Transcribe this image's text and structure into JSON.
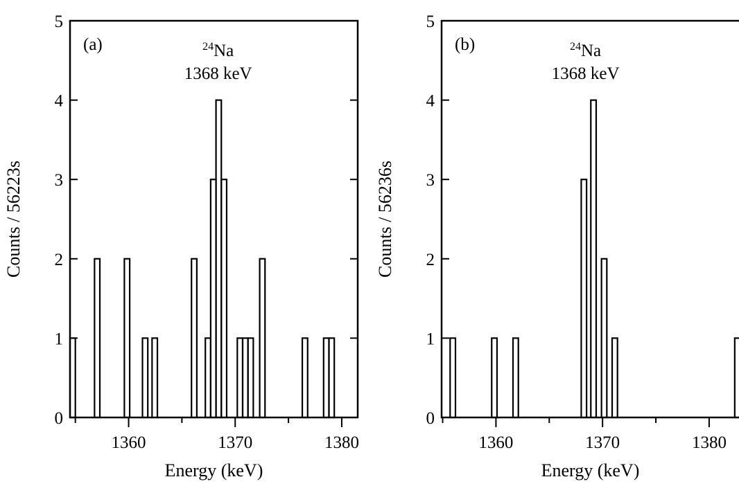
{
  "chart_data": [
    {
      "type": "bar",
      "panel_label": "(a)",
      "annotation": {
        "isotope_mass": "24",
        "isotope_symbol": "Na",
        "energy": "1368 keV"
      },
      "xlabel": "Energy (keV)",
      "ylabel": "Counts / 56223s",
      "xlim": [
        1354.5,
        1381.5
      ],
      "ylim": [
        0,
        5
      ],
      "xticks": [
        1360,
        1370,
        1380
      ],
      "xtick_labels": [
        "1360",
        "1370",
        "1380"
      ],
      "yticks": [
        0,
        1,
        2,
        3,
        4,
        5
      ],
      "ytick_labels": [
        "0",
        "1",
        "2",
        "3",
        "4",
        "5"
      ],
      "bin_width": 0.5,
      "bins": [
        {
          "x": 1354.5,
          "count": 1
        },
        {
          "x": 1356.8,
          "count": 2
        },
        {
          "x": 1359.6,
          "count": 2
        },
        {
          "x": 1361.3,
          "count": 1
        },
        {
          "x": 1362.2,
          "count": 1
        },
        {
          "x": 1365.9,
          "count": 2
        },
        {
          "x": 1367.2,
          "count": 1
        },
        {
          "x": 1367.7,
          "count": 3
        },
        {
          "x": 1368.2,
          "count": 4
        },
        {
          "x": 1368.7,
          "count": 3
        },
        {
          "x": 1370.2,
          "count": 1
        },
        {
          "x": 1370.7,
          "count": 1
        },
        {
          "x": 1371.2,
          "count": 1
        },
        {
          "x": 1372.3,
          "count": 2
        },
        {
          "x": 1376.3,
          "count": 1
        },
        {
          "x": 1378.3,
          "count": 1
        },
        {
          "x": 1378.8,
          "count": 1
        }
      ]
    },
    {
      "type": "bar",
      "panel_label": "(b)",
      "annotation": {
        "isotope_mass": "24",
        "isotope_symbol": "Na",
        "energy": "1368 keV"
      },
      "xlabel": "Energy (keV)",
      "ylabel": "Counts / 56236s",
      "xlim": [
        1354.9,
        1382.8
      ],
      "ylim": [
        0,
        5
      ],
      "xticks": [
        1360,
        1370,
        1380
      ],
      "xtick_labels": [
        "1360",
        "1370",
        "1380"
      ],
      "yticks": [
        0,
        1,
        2,
        3,
        4,
        5
      ],
      "ytick_labels": [
        "0",
        "1",
        "2",
        "3",
        "4",
        "5"
      ],
      "bin_width": 0.5,
      "bins": [
        {
          "x": 1355.7,
          "count": 1
        },
        {
          "x": 1359.6,
          "count": 1
        },
        {
          "x": 1361.6,
          "count": 1
        },
        {
          "x": 1368.0,
          "count": 3
        },
        {
          "x": 1368.9,
          "count": 4
        },
        {
          "x": 1369.9,
          "count": 2
        },
        {
          "x": 1370.9,
          "count": 1
        },
        {
          "x": 1382.4,
          "count": 1
        }
      ]
    }
  ]
}
